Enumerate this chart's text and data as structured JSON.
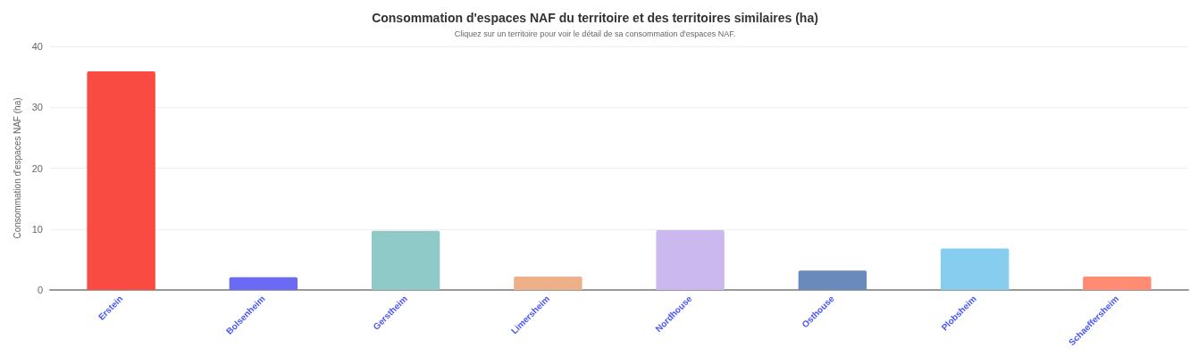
{
  "chart_data": {
    "type": "bar",
    "title": "Consommation d'espaces NAF du territoire et des territoires similaires (ha)",
    "subtitle": "Cliquez sur un territoire pour voir le détail de sa consommation d'espaces NAF.",
    "ylabel": "Consommation d'espaces NAF (ha)",
    "categories": [
      "Erstein",
      "Bolsenheim",
      "Gerstheim",
      "Limersheim",
      "Nordhouse",
      "Osthouse",
      "Plobsheim",
      "Schaeffersheim"
    ],
    "values": [
      35.9,
      2.1,
      9.7,
      2.2,
      9.8,
      3.2,
      6.8,
      2.2
    ],
    "colors": [
      "#fa4b42",
      "#6a6af4",
      "#8fcac8",
      "#eeb088",
      "#cab8ee",
      "#6a8abc",
      "#87cdf0",
      "#ff8c73"
    ],
    "ylim": [
      0,
      40
    ],
    "yticks": [
      0,
      10,
      20,
      30,
      40
    ],
    "grid": "y"
  }
}
